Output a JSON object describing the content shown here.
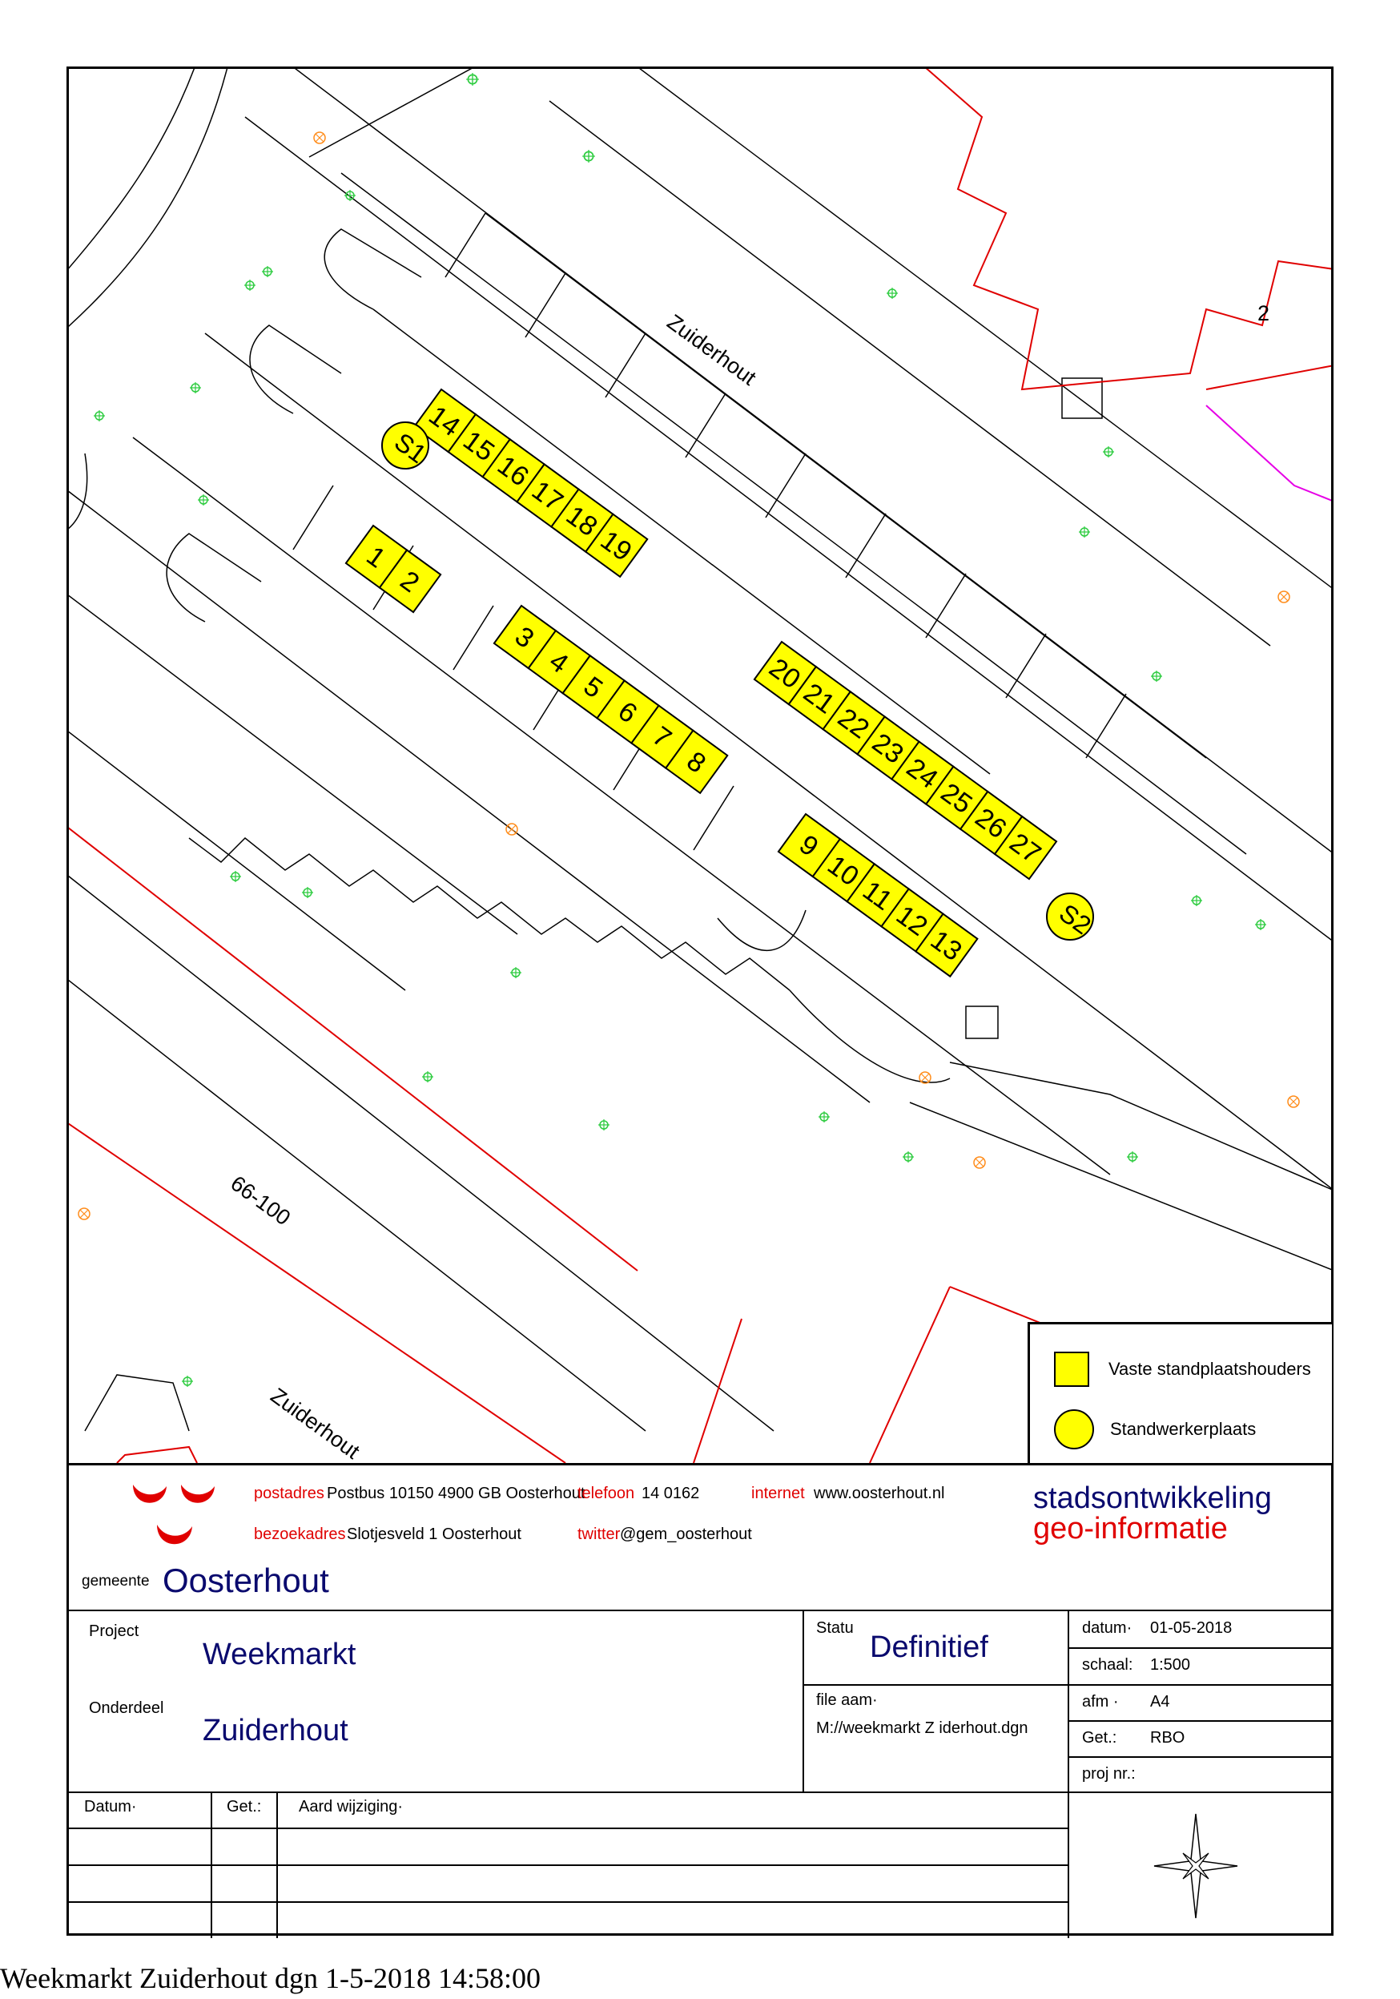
{
  "map": {
    "street_labels": [
      "Zuiderhout",
      "Zuiderhout"
    ],
    "area_label": "66-100",
    "parcel_number": "2",
    "stalls_row_a": [
      "1",
      "2"
    ],
    "stalls_row_b": [
      "3",
      "4",
      "5",
      "6",
      "7",
      "8"
    ],
    "stalls_row_c": [
      "9",
      "10",
      "11",
      "12",
      "13"
    ],
    "stalls_row_d": [
      "14",
      "15",
      "16",
      "17",
      "18",
      "19"
    ],
    "stalls_row_e": [
      "20",
      "21",
      "22",
      "23",
      "24",
      "25",
      "26",
      "27"
    ],
    "standwerker_spots": [
      "S1",
      "S2"
    ],
    "colors": {
      "stall_fill": "#ffff00",
      "boundary": "#e00000",
      "vegetation": "#2ecc40",
      "utility": "#ff8c1a",
      "magenta_line": "#e600e6"
    }
  },
  "legend": {
    "fixed_label": "Vaste standplaatshouders",
    "standwerker_label": "Standwerkerplaats"
  },
  "contact": {
    "postadres_label": "postadres",
    "postadres_value": "Postbus 10150  4900 GB Oosterhout",
    "telefoon_label": "telefoon",
    "telefoon_value": "14 0162",
    "internet_label": "internet",
    "internet_value": "www.oosterhout.nl",
    "bezoekadres_label": "bezoekadres",
    "bezoekadres_value": "Slotjesveld 1 Oosterhout",
    "twitter_label": "twitter",
    "twitter_value": "@gem_oosterhout"
  },
  "branding": {
    "gemeente": "gemeente",
    "city": "Oosterhout",
    "dept_line1": "stadsontwikkeling",
    "dept_line2": "geo-informatie",
    "logo_color": "#e00000"
  },
  "project": {
    "project_label": "Project",
    "project_value": "Weekmarkt",
    "onderdeel_label": "Onderdeel",
    "onderdeel_value": "Zuiderhout",
    "status_label": "Statu",
    "status_value": "Definitief",
    "file_label": "file  aam·",
    "file_value": "M://weekmarkt Z  iderhout.dgn",
    "datum_label": "datum·",
    "datum_value": "01-05-2018",
    "schaal_label": "schaal:",
    "schaal_value": "1:500",
    "afm_label": "afm  ·",
    "afm_value": "A4",
    "get_label": "Get.:",
    "get_value": "RBO",
    "projnr_label": "proj nr.:"
  },
  "revisions": {
    "col_datum": "Datum·",
    "col_get": "Get.:",
    "col_aard": "Aard wijziging·"
  },
  "compass": "compass-rose-icon",
  "footer": "Weekmarkt Zuiderhout  dgn 1-5-2018 14:58:00"
}
